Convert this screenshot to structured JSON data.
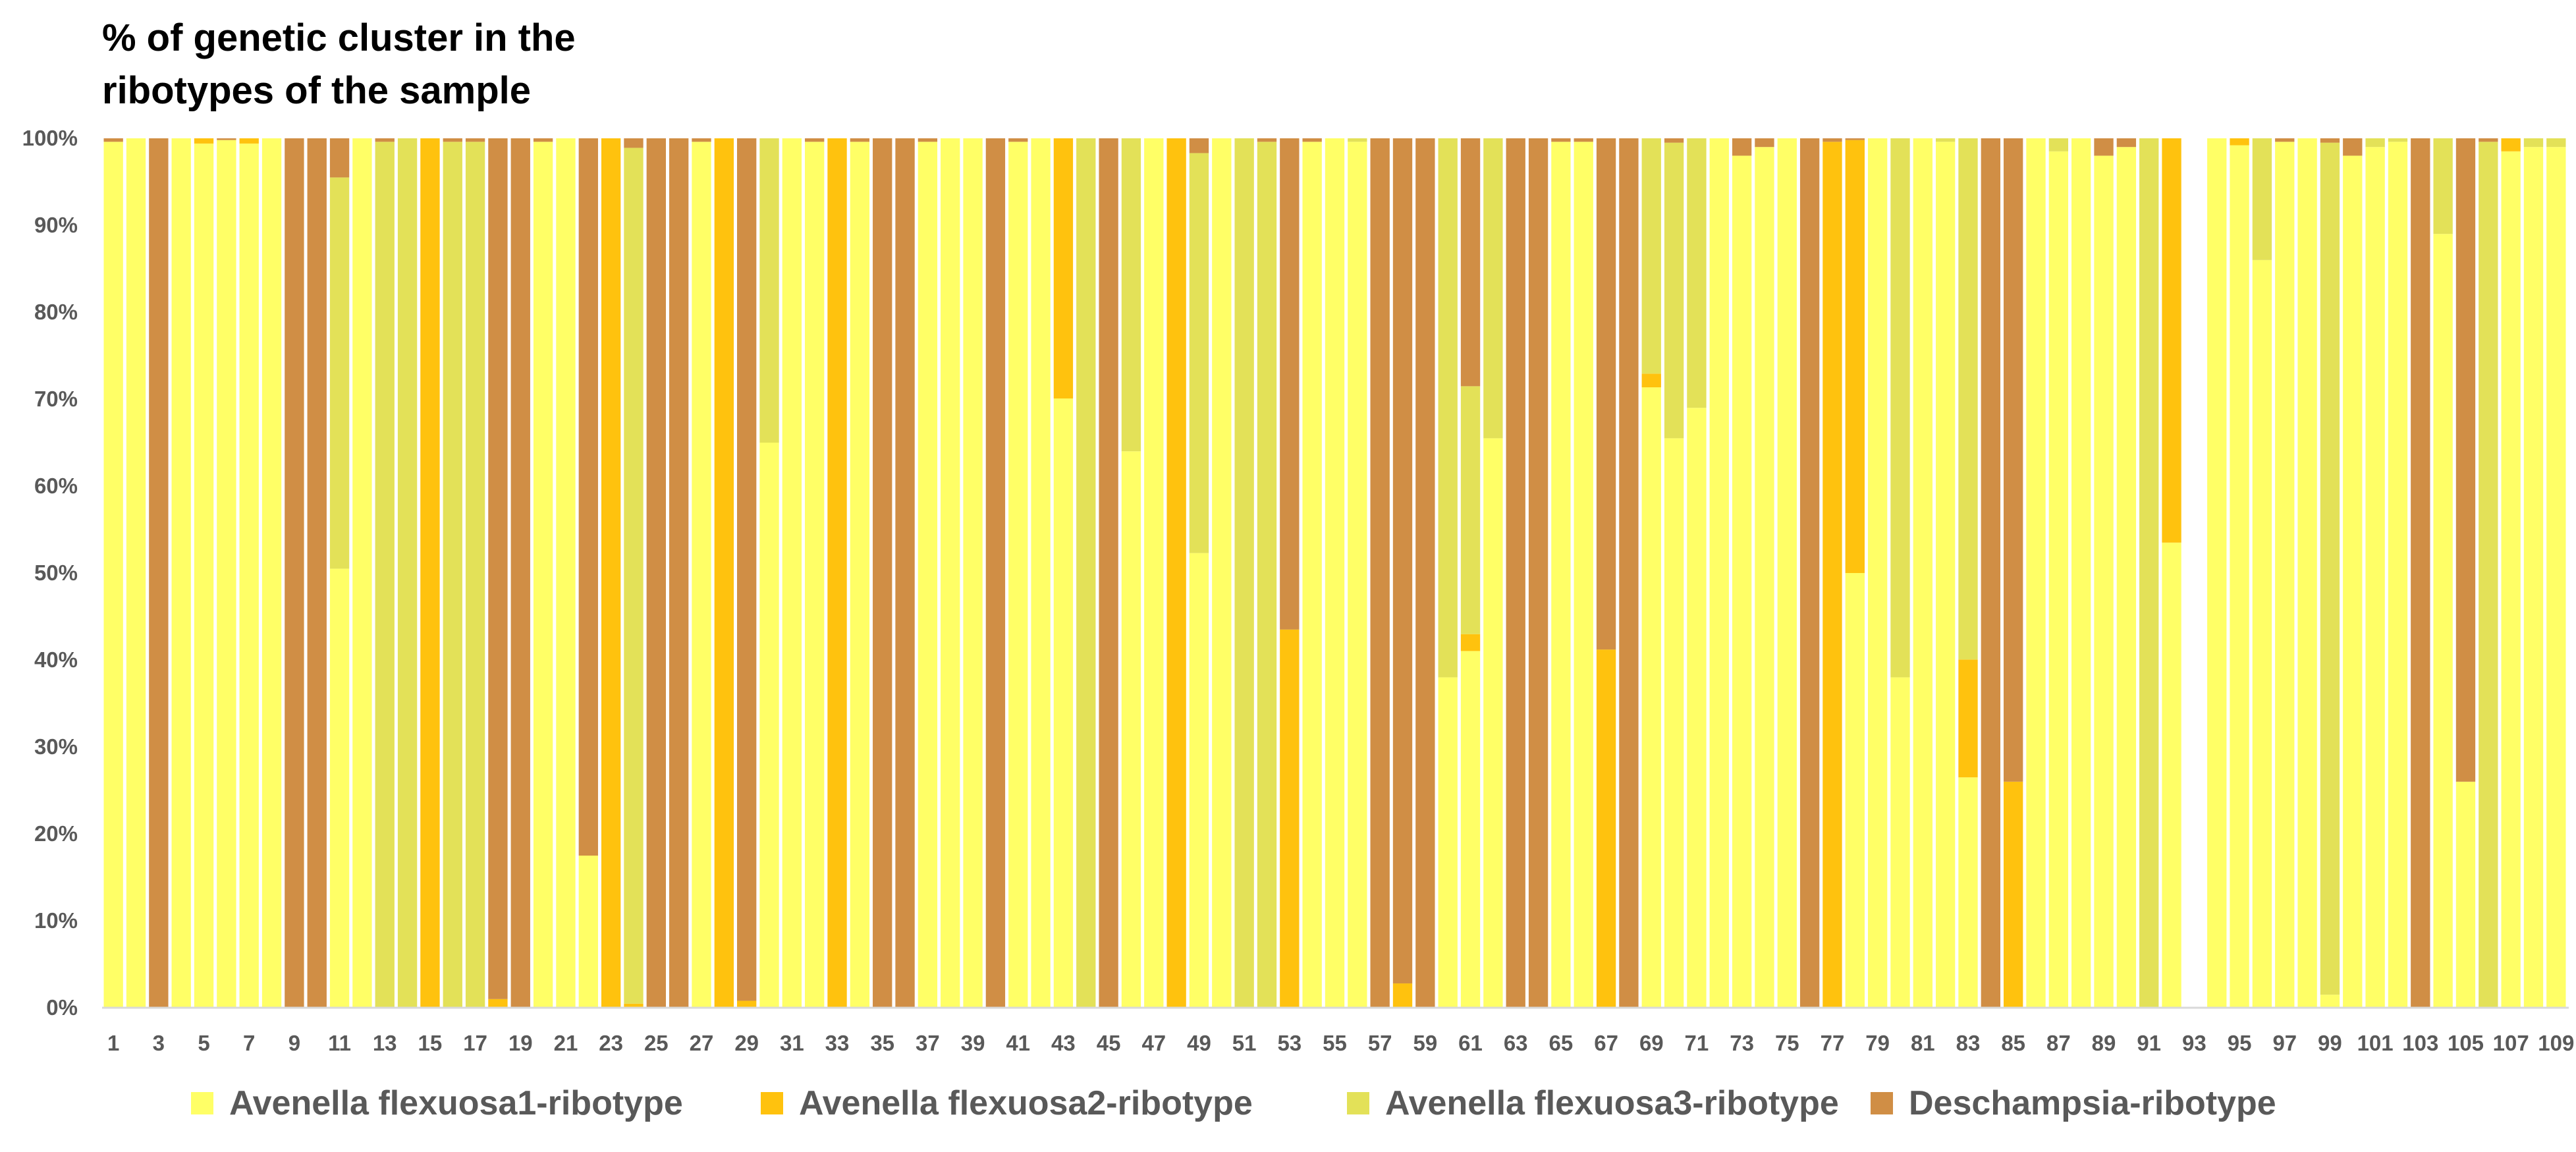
{
  "chart_data": {
    "type": "bar",
    "stacked": "percent",
    "title": "% of genetic cluster in the ribotypes of the sample",
    "xlabel": "",
    "ylabel": "",
    "ylim": [
      0,
      100
    ],
    "yticks": [
      "0%",
      "10%",
      "20%",
      "30%",
      "40%",
      "50%",
      "60%",
      "70%",
      "80%",
      "90%",
      "100%"
    ],
    "grid": false,
    "legend_position": "bottom",
    "categories": [
      "1",
      "2",
      "3",
      "4",
      "5",
      "6",
      "7",
      "8",
      "9",
      "10",
      "11",
      "12",
      "13",
      "14",
      "15",
      "16",
      "17",
      "18",
      "19",
      "20",
      "21",
      "22",
      "23",
      "24",
      "25",
      "26",
      "27",
      "28",
      "29",
      "30",
      "31",
      "32",
      "33",
      "34",
      "35",
      "36",
      "37",
      "38",
      "39",
      "40",
      "41",
      "42",
      "43",
      "44",
      "45",
      "46",
      "47",
      "48",
      "49",
      "50",
      "51",
      "52",
      "53",
      "54",
      "55",
      "56",
      "57",
      "58",
      "59",
      "60",
      "61",
      "62",
      "63",
      "64",
      "65",
      "66",
      "67",
      "68",
      "69",
      "70",
      "71",
      "72",
      "73",
      "74",
      "75",
      "76",
      "77",
      "78",
      "79",
      "80",
      "81",
      "82",
      "83",
      "84",
      "85",
      "86",
      "87",
      "88",
      "89",
      "90",
      "91",
      "92",
      "93",
      "94",
      "95",
      "96",
      "97",
      "98",
      "99",
      "100",
      "101",
      "102",
      "103",
      "104",
      "105",
      "106",
      "107",
      "108",
      "109"
    ],
    "shown_tick_labels": [
      "1",
      "3",
      "5",
      "7",
      "9",
      "11",
      "13",
      "15",
      "17",
      "19",
      "21",
      "23",
      "25",
      "27",
      "29",
      "31",
      "33",
      "35",
      "37",
      "39",
      "41",
      "43",
      "45",
      "47",
      "49",
      "51",
      "53",
      "55",
      "57",
      "59",
      "61",
      "63",
      "65",
      "67",
      "69",
      "71",
      "73",
      "75",
      "77",
      "79",
      "81",
      "83",
      "85",
      "87",
      "89",
      "91",
      "93",
      "95",
      "97",
      "99",
      "101",
      "103",
      "105",
      "107",
      "109"
    ],
    "series": [
      {
        "name": "Avenella flexuosa1-ribotype",
        "color": "#FFFF66",
        "values": [
          99.6,
          100,
          0,
          100,
          99.4,
          99.8,
          99.4,
          100,
          0,
          0,
          50.5,
          100,
          0,
          0,
          0,
          0,
          0,
          0,
          0,
          99.6,
          100,
          17.5,
          0,
          0,
          0,
          0,
          99.6,
          0,
          0,
          65,
          100,
          99.6,
          0,
          99.6,
          0,
          0,
          99.6,
          100,
          100,
          0,
          99.6,
          100,
          100,
          0,
          0,
          64,
          100,
          0,
          52.3,
          100,
          0,
          0,
          0,
          99.6,
          100,
          99.6,
          0,
          0,
          0,
          38,
          59,
          65.5,
          0,
          0,
          99.6,
          99.6,
          0,
          0,
          72.5,
          65.5,
          69,
          100,
          98,
          99,
          100,
          0,
          0,
          100,
          100,
          38,
          100,
          99.6,
          30.5,
          0,
          0,
          100,
          98.5,
          98.5,
          98,
          99,
          0,
          53.5,
          0,
          100,
          99.4,
          86,
          99.6,
          100,
          1.5,
          98,
          99,
          99.6,
          0,
          89,
          26,
          0,
          98.5,
          99,
          99
        ]
      },
      {
        "name": "Avenella flexuosa2-ribotype",
        "color": "#FFC20E",
        "values": [
          0,
          0,
          0,
          0,
          0.6,
          0,
          0.6,
          0,
          0,
          0,
          0,
          0,
          0,
          0,
          100,
          0,
          0,
          1,
          0,
          0,
          0,
          0,
          100,
          0.3,
          0,
          0,
          0,
          100,
          0.8,
          0,
          0,
          0,
          100,
          0,
          0,
          0,
          0,
          0,
          0,
          0,
          0,
          0,
          42.7,
          0,
          0,
          0,
          0,
          100,
          0,
          0,
          0,
          0,
          43.5,
          0,
          0,
          0,
          0,
          2.8,
          0,
          0,
          2.8,
          0,
          0,
          0,
          0,
          0,
          41.2,
          0,
          1.6,
          0,
          0,
          0,
          0,
          0,
          0,
          0,
          99.6,
          99.6,
          0,
          0,
          0,
          0,
          15.6,
          0,
          26,
          0,
          0,
          0,
          0,
          0,
          0,
          46.5,
          0,
          0,
          0.8,
          0,
          0,
          0,
          0,
          0,
          0,
          0,
          0,
          0,
          0,
          0,
          1.5,
          0,
          0
        ]
      },
      {
        "name": "Avenella flexuosa3-ribotype",
        "color": "#E3E158",
        "values": [
          0,
          0,
          0,
          0,
          0,
          0,
          0,
          0,
          0,
          0,
          45,
          0,
          99.6,
          100,
          0,
          99.6,
          99.6,
          0,
          0,
          0,
          0,
          0,
          0,
          63,
          0,
          0,
          0,
          0,
          0,
          35,
          0,
          0,
          0,
          0,
          0,
          0,
          0,
          0,
          0,
          0,
          0,
          0,
          0,
          100,
          0,
          36,
          0,
          0,
          46,
          0,
          100,
          99.6,
          0,
          0,
          0,
          0.4,
          0,
          0,
          0,
          62,
          41,
          34.5,
          0,
          0,
          0,
          0,
          0,
          0,
          27.5,
          34,
          31,
          0,
          0,
          0,
          0,
          0,
          0,
          0,
          0,
          62,
          0,
          0.4,
          69,
          0,
          0,
          0,
          1.5,
          0,
          0,
          0,
          100,
          0,
          0,
          0,
          0,
          14,
          0,
          0,
          98,
          0,
          1,
          0.4,
          0,
          11,
          0,
          99.6,
          0,
          1,
          1
        ]
      },
      {
        "name": "Deschampsia-ribotype",
        "color": "#D08E45",
        "values": [
          0.4,
          0,
          100,
          0,
          0,
          0.2,
          0,
          0,
          100,
          100,
          4.5,
          0,
          0.4,
          0,
          0,
          0.4,
          0.4,
          99,
          100,
          0.4,
          0,
          82.5,
          0,
          0.7,
          100,
          100,
          0.4,
          0,
          99.2,
          0,
          0,
          0.4,
          0,
          0.4,
          100,
          100,
          0.4,
          0,
          0,
          100,
          0.4,
          0,
          0,
          0,
          100,
          0,
          0,
          0,
          1.7,
          0,
          0,
          0.4,
          56.5,
          0.4,
          0,
          0,
          100,
          97.2,
          100,
          0,
          41,
          0,
          100,
          100,
          0.4,
          0.4,
          58.8,
          100,
          0,
          0.5,
          0,
          0,
          2,
          1,
          0,
          100,
          0.4,
          0.4,
          0,
          0,
          0,
          0,
          0,
          100,
          74,
          0,
          0,
          0,
          2,
          1,
          0,
          0,
          0,
          0,
          0,
          0,
          0.4,
          0,
          0.5,
          2,
          0,
          0,
          100,
          0,
          74,
          0.4,
          0,
          0,
          0
        ]
      }
    ]
  }
}
